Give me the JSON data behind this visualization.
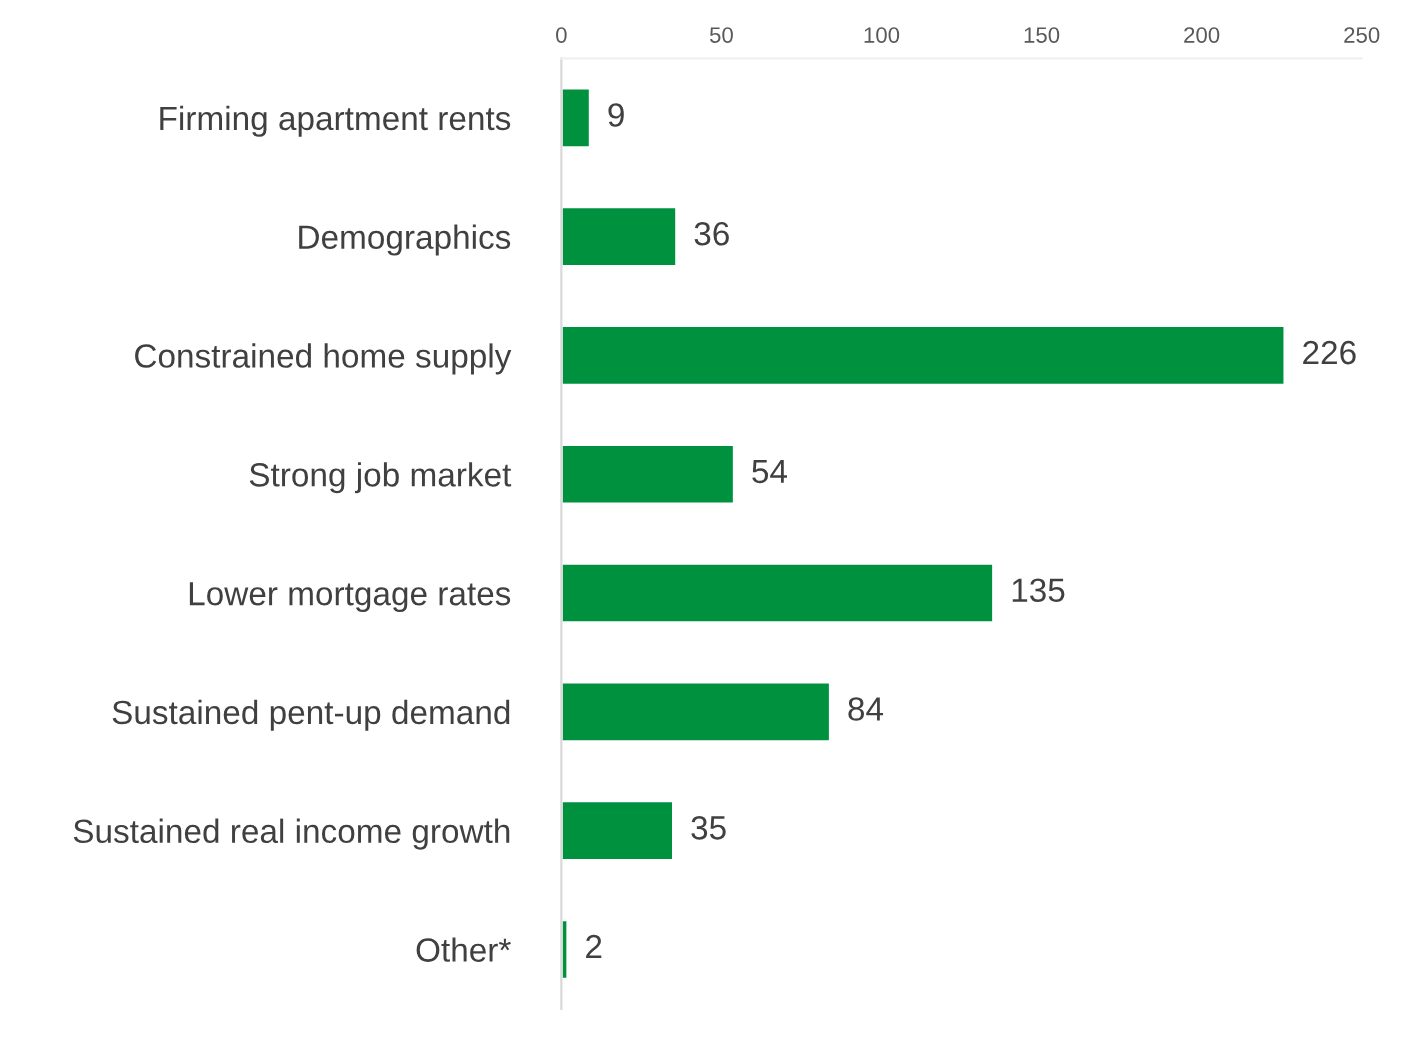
{
  "chart_data": {
    "type": "bar",
    "orientation": "horizontal",
    "categories": [
      "Firming apartment rents",
      "Demographics",
      "Constrained home supply",
      "Strong job market",
      "Lower mortgage rates",
      "Sustained pent-up demand",
      "Sustained real income growth",
      "Other*"
    ],
    "series": [
      {
        "color": "#00913f",
        "values": [
          9,
          36,
          226,
          54,
          135,
          84,
          35,
          2
        ]
      }
    ],
    "xlim": [
      0,
      250
    ],
    "xticks": [
      0,
      50,
      100,
      150,
      200,
      250
    ],
    "data_labels": true,
    "grid": false,
    "legend": false
  }
}
